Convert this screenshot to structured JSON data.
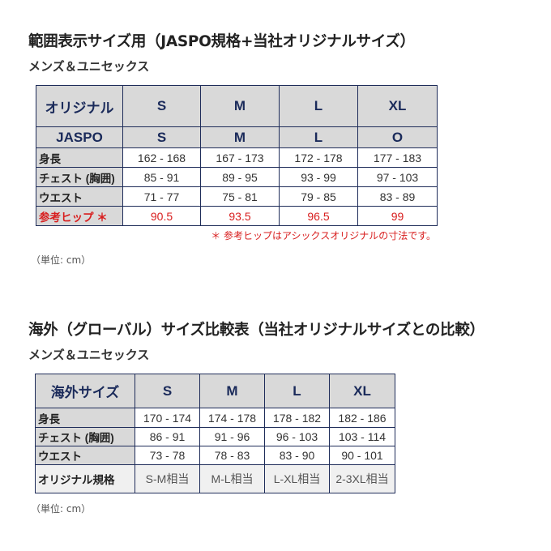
{
  "section1": {
    "title": "範囲表示サイズ用（JASPO規格+当社オリジナルサイズ）",
    "subtitle": "メンズ＆ユニセックス",
    "header": [
      "オリジナル",
      "S",
      "M",
      "L",
      "XL"
    ],
    "jaspo": [
      "JASPO",
      "S",
      "M",
      "L",
      "O"
    ],
    "rows": [
      {
        "label": "身長",
        "values": [
          "162 - 168",
          "167 - 173",
          "172 - 178",
          "177 - 183"
        ]
      },
      {
        "label": "チェスト (胸囲)",
        "values": [
          "85 - 91",
          "89 - 95",
          "93 - 99",
          "97 - 103"
        ]
      },
      {
        "label": "ウエスト",
        "values": [
          "71 - 77",
          "75 - 81",
          "79 - 85",
          "83 - 89"
        ]
      },
      {
        "label": "参考ヒップ ＊",
        "values": [
          "90.5",
          "93.5",
          "96.5",
          "99"
        ]
      }
    ],
    "note": "＊ 参考ヒップはアシックスオリジナルの寸法です。",
    "unit": "（単位: cm）"
  },
  "section2": {
    "title": "海外（グローバル）サイズ比較表（当社オリジナルサイズとの比較）",
    "subtitle": "メンズ＆ユニセックス",
    "header": [
      "海外サイズ",
      "S",
      "M",
      "L",
      "XL"
    ],
    "rows": [
      {
        "label": "身長",
        "values": [
          "170 - 174",
          "174 - 178",
          "178 - 182",
          "182 - 186"
        ]
      },
      {
        "label": "チェスト (胸囲)",
        "values": [
          "86 - 91",
          "91 - 96",
          "96 - 103",
          "103 - 114"
        ]
      },
      {
        "label": "ウエスト",
        "values": [
          "73 - 78",
          "78 - 83",
          "83 - 90",
          "90 - 101"
        ]
      },
      {
        "label": "オリジナル規格",
        "values": [
          "S-M相当",
          "M-L相当",
          "L-XL相当",
          "2-3XL相当"
        ]
      }
    ],
    "unit": "（単位: cm）"
  },
  "colors": {
    "border": "#1f2d5a",
    "header_bg": "#d9d9d9",
    "accent_red": "#d81e1e"
  }
}
